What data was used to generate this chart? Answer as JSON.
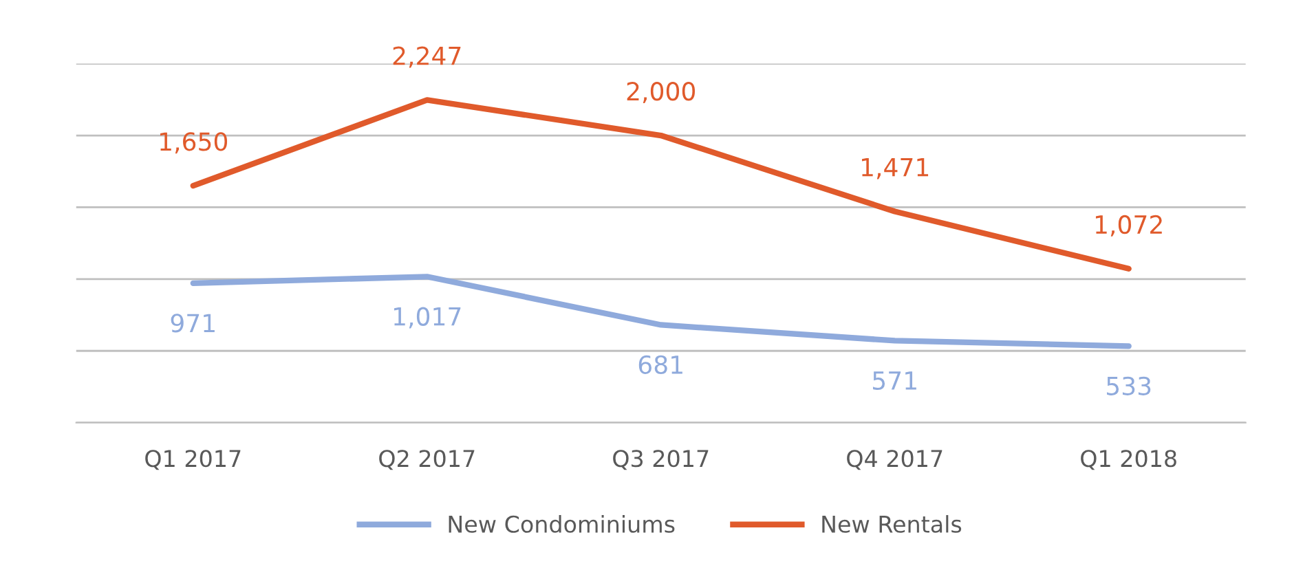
{
  "chart_data": {
    "type": "line",
    "categories": [
      "Q1 2017",
      "Q2 2017",
      "Q3 2017",
      "Q4 2017",
      "Q1 2018"
    ],
    "series": [
      {
        "name": "New Condominiums",
        "color": "#8faadc",
        "values": [
          971,
          1017,
          681,
          571,
          533
        ],
        "value_labels": [
          "971",
          "1,017",
          "681",
          "571",
          "533"
        ]
      },
      {
        "name": "New Rentals",
        "color": "#e05a2b",
        "values": [
          1650,
          2247,
          2000,
          1471,
          1072
        ],
        "value_labels": [
          "1,650",
          "2,247",
          "2,000",
          "1,471",
          "1,072"
        ]
      }
    ],
    "ylim": [
      0,
      2500
    ],
    "yticks": [
      {
        "value": 0,
        "label": null
      },
      {
        "value": 500,
        "label": null
      },
      {
        "value": 1000,
        "label": null
      },
      {
        "value": 1500,
        "label": null
      },
      {
        "value": 2000,
        "label": null
      },
      {
        "value": 2500,
        "label": null
      }
    ],
    "grid": "y",
    "legend": "bottom",
    "tick_labels": "x",
    "marker": "none",
    "line_style": "solid"
  }
}
